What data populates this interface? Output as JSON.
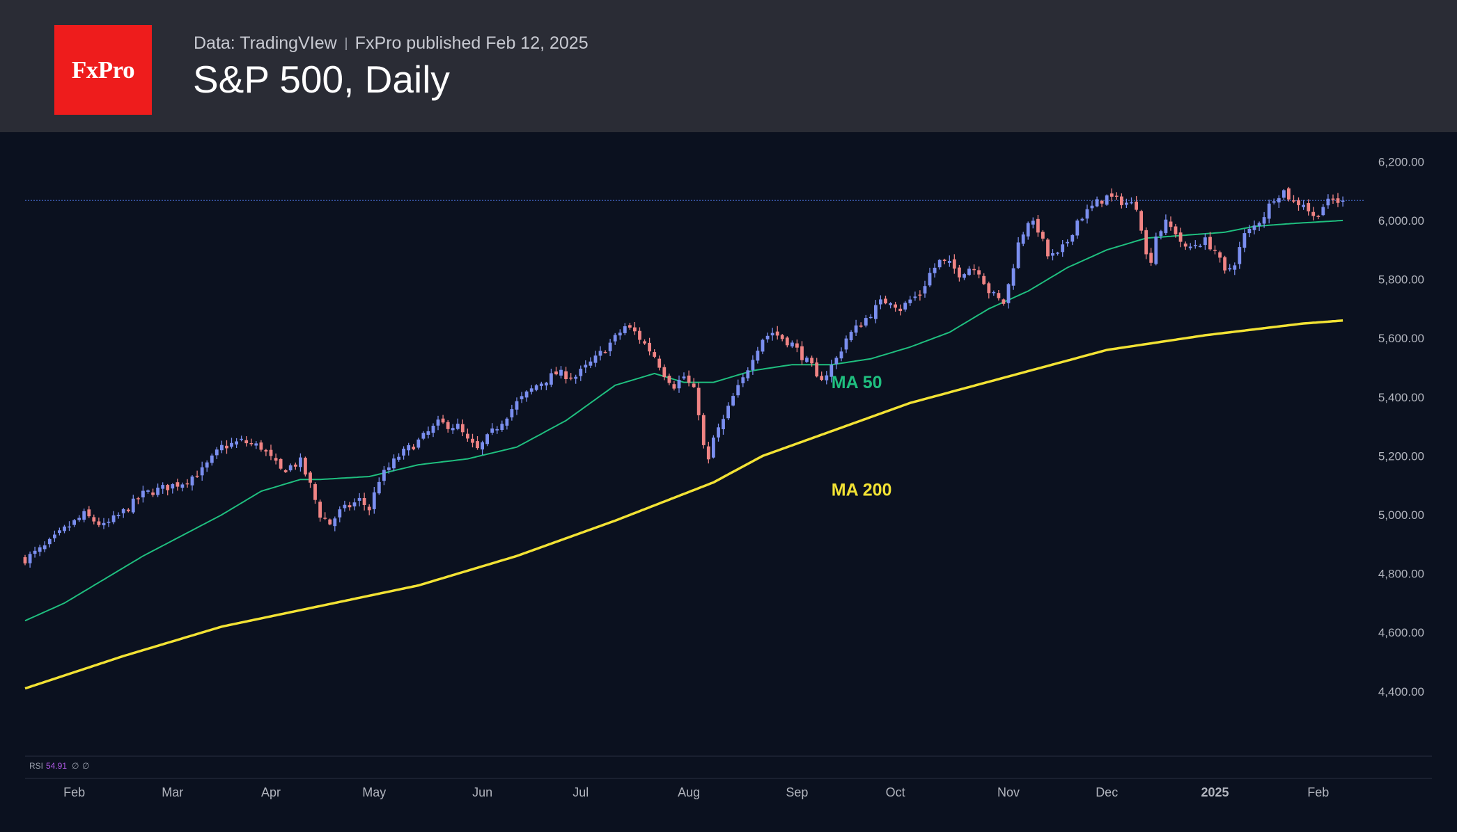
{
  "header": {
    "logo_text": "FxPro",
    "source": "Data: TradingVIew",
    "published": "FxPro published Feb 12, 2025",
    "title": "S&P 500, Daily"
  },
  "colors": {
    "up": "#7b8ff0",
    "down": "#f08484",
    "ma50": "#1fbf7f",
    "ma200": "#f2e234",
    "price_line": "#4a6fd6",
    "rsi_value": "#b15be8"
  },
  "chart_data": {
    "type": "candlestick",
    "title": "S&P 500, Daily",
    "ylim": [
      4220,
      6300
    ],
    "y_ticks": [
      "6,200.00",
      "6,000.00",
      "5,800.00",
      "5,600.00",
      "5,400.00",
      "5,200.00",
      "5,000.00",
      "4,800.00",
      "4,600.00",
      "4,400.00"
    ],
    "y_tick_values": [
      6200,
      6000,
      5800,
      5600,
      5400,
      5200,
      5000,
      4800,
      4600,
      4400
    ],
    "x_ticks": [
      {
        "label": "Feb",
        "day": 10
      },
      {
        "label": "Mar",
        "day": 30
      },
      {
        "label": "Apr",
        "day": 50
      },
      {
        "label": "May",
        "day": 71
      },
      {
        "label": "Jun",
        "day": 93
      },
      {
        "label": "Jul",
        "day": 113
      },
      {
        "label": "Aug",
        "day": 135
      },
      {
        "label": "Sep",
        "day": 157
      },
      {
        "label": "Oct",
        "day": 177
      },
      {
        "label": "Nov",
        "day": 200
      },
      {
        "label": "Dec",
        "day": 220
      },
      {
        "label": "2025",
        "day": 242
      },
      {
        "label": "Feb",
        "day": 263
      }
    ],
    "days_total": 274,
    "last_price": 6068,
    "anchors": [
      [
        0,
        4850
      ],
      [
        4,
        4890
      ],
      [
        8,
        4950
      ],
      [
        12,
        5000
      ],
      [
        16,
        4960
      ],
      [
        20,
        5010
      ],
      [
        24,
        5070
      ],
      [
        28,
        5090
      ],
      [
        32,
        5110
      ],
      [
        36,
        5150
      ],
      [
        40,
        5230
      ],
      [
        44,
        5250
      ],
      [
        48,
        5230
      ],
      [
        52,
        5150
      ],
      [
        56,
        5180
      ],
      [
        58,
        5100
      ],
      [
        60,
        5000
      ],
      [
        62,
        4970
      ],
      [
        64,
        5010
      ],
      [
        68,
        5050
      ],
      [
        70,
        5020
      ],
      [
        72,
        5120
      ],
      [
        76,
        5200
      ],
      [
        80,
        5250
      ],
      [
        84,
        5310
      ],
      [
        88,
        5300
      ],
      [
        90,
        5250
      ],
      [
        92,
        5220
      ],
      [
        96,
        5300
      ],
      [
        100,
        5380
      ],
      [
        104,
        5440
      ],
      [
        108,
        5480
      ],
      [
        112,
        5470
      ],
      [
        116,
        5530
      ],
      [
        120,
        5600
      ],
      [
        122,
        5640
      ],
      [
        124,
        5620
      ],
      [
        126,
        5580
      ],
      [
        128,
        5540
      ],
      [
        130,
        5480
      ],
      [
        132,
        5440
      ],
      [
        134,
        5470
      ],
      [
        136,
        5420
      ],
      [
        137,
        5350
      ],
      [
        138,
        5230
      ],
      [
        139,
        5180
      ],
      [
        140,
        5260
      ],
      [
        142,
        5320
      ],
      [
        144,
        5400
      ],
      [
        146,
        5460
      ],
      [
        148,
        5540
      ],
      [
        150,
        5600
      ],
      [
        152,
        5620
      ],
      [
        154,
        5600
      ],
      [
        156,
        5580
      ],
      [
        158,
        5540
      ],
      [
        160,
        5500
      ],
      [
        161,
        5460
      ],
      [
        163,
        5480
      ],
      [
        165,
        5530
      ],
      [
        167,
        5600
      ],
      [
        170,
        5650
      ],
      [
        174,
        5720
      ],
      [
        176,
        5730
      ],
      [
        178,
        5700
      ],
      [
        180,
        5730
      ],
      [
        182,
        5750
      ],
      [
        184,
        5820
      ],
      [
        186,
        5860
      ],
      [
        188,
        5850
      ],
      [
        190,
        5820
      ],
      [
        192,
        5840
      ],
      [
        194,
        5830
      ],
      [
        196,
        5760
      ],
      [
        198,
        5730
      ],
      [
        199,
        5720
      ],
      [
        200,
        5780
      ],
      [
        202,
        5920
      ],
      [
        204,
        6000
      ],
      [
        206,
        5970
      ],
      [
        208,
        5880
      ],
      [
        210,
        5880
      ],
      [
        212,
        5930
      ],
      [
        214,
        6000
      ],
      [
        216,
        6030
      ],
      [
        218,
        6060
      ],
      [
        220,
        6080
      ],
      [
        222,
        6070
      ],
      [
        224,
        6060
      ],
      [
        226,
        6050
      ],
      [
        227,
        5980
      ],
      [
        228,
        5880
      ],
      [
        229,
        5870
      ],
      [
        230,
        5950
      ],
      [
        232,
        5990
      ],
      [
        234,
        5960
      ],
      [
        236,
        5900
      ],
      [
        238,
        5920
      ],
      [
        240,
        5930
      ],
      [
        242,
        5900
      ],
      [
        244,
        5820
      ],
      [
        246,
        5860
      ],
      [
        248,
        5950
      ],
      [
        250,
        5980
      ],
      [
        252,
        6020
      ],
      [
        254,
        6080
      ],
      [
        256,
        6100
      ],
      [
        258,
        6060
      ],
      [
        260,
        6060
      ],
      [
        262,
        6010
      ],
      [
        264,
        6050
      ],
      [
        266,
        6070
      ],
      [
        268,
        6060
      ]
    ],
    "ma50_points": [
      [
        0,
        4640
      ],
      [
        8,
        4700
      ],
      [
        16,
        4780
      ],
      [
        24,
        4860
      ],
      [
        32,
        4930
      ],
      [
        40,
        5000
      ],
      [
        48,
        5080
      ],
      [
        56,
        5120
      ],
      [
        60,
        5120
      ],
      [
        70,
        5130
      ],
      [
        80,
        5170
      ],
      [
        90,
        5190
      ],
      [
        100,
        5230
      ],
      [
        110,
        5320
      ],
      [
        120,
        5440
      ],
      [
        128,
        5480
      ],
      [
        134,
        5450
      ],
      [
        140,
        5450
      ],
      [
        148,
        5490
      ],
      [
        156,
        5510
      ],
      [
        164,
        5510
      ],
      [
        172,
        5530
      ],
      [
        180,
        5570
      ],
      [
        188,
        5620
      ],
      [
        196,
        5700
      ],
      [
        204,
        5760
      ],
      [
        212,
        5840
      ],
      [
        220,
        5900
      ],
      [
        228,
        5940
      ],
      [
        236,
        5950
      ],
      [
        244,
        5960
      ],
      [
        250,
        5980
      ],
      [
        258,
        5990
      ],
      [
        268,
        6000
      ]
    ],
    "ma200_points": [
      [
        0,
        4410
      ],
      [
        20,
        4520
      ],
      [
        40,
        4620
      ],
      [
        60,
        4690
      ],
      [
        80,
        4760
      ],
      [
        100,
        4860
      ],
      [
        120,
        4980
      ],
      [
        140,
        5110
      ],
      [
        150,
        5200
      ],
      [
        160,
        5260
      ],
      [
        180,
        5380
      ],
      [
        200,
        5470
      ],
      [
        220,
        5560
      ],
      [
        240,
        5610
      ],
      [
        260,
        5650
      ],
      [
        268,
        5660
      ]
    ],
    "annotations": {
      "ma50": "MA 50",
      "ma200": "MA 200",
      "ma50_day": 164,
      "ma50_price": 5430,
      "ma200_day": 164,
      "ma200_price": 5065
    },
    "rsi": {
      "label": "RSI",
      "value": "54.91",
      "extra1": "∅",
      "extra2": "∅"
    }
  }
}
